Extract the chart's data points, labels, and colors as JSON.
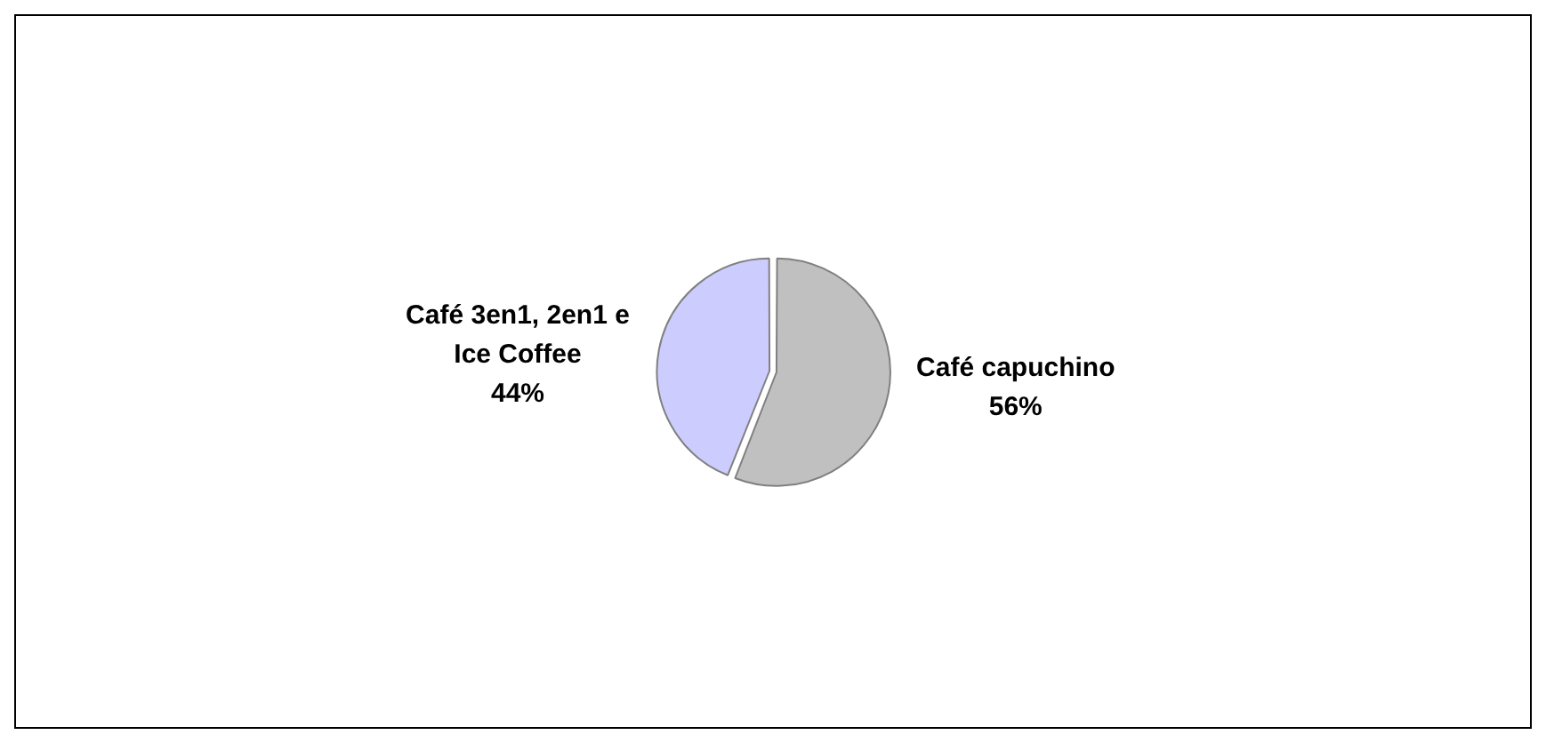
{
  "chart_data": {
    "type": "pie",
    "categories": [
      "Café capuchino",
      "Café 3en1, 2en1 e Ice Coffee"
    ],
    "values": [
      56,
      44
    ],
    "colors": [
      "#c0c0c0",
      "#ccccff"
    ],
    "value_labels": [
      "56%",
      "44%"
    ],
    "legend": false
  }
}
